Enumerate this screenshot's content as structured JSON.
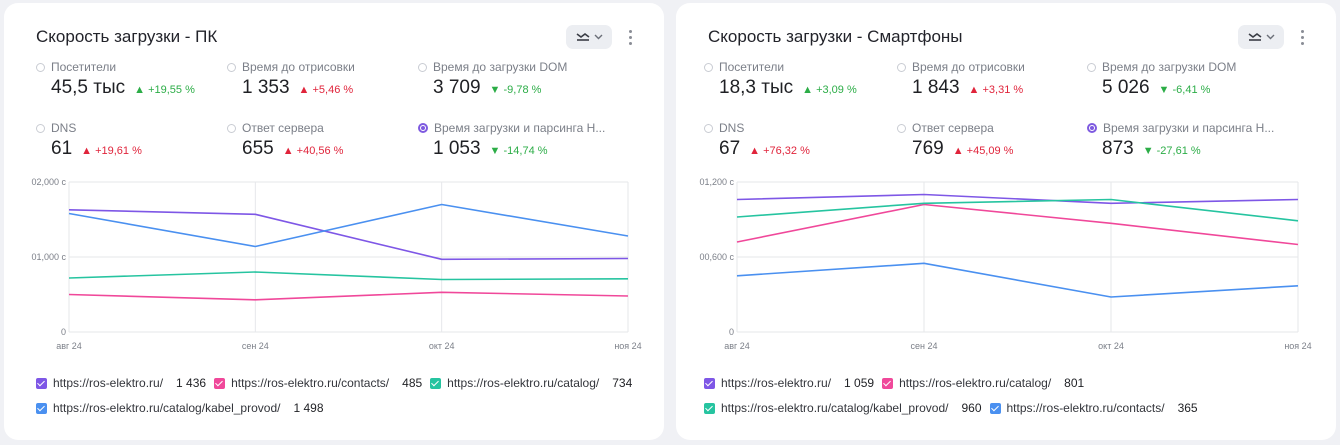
{
  "cards": [
    {
      "title": "Скорость загрузки - ПК",
      "metrics": [
        {
          "label": "Посетители",
          "value": "45,5 тыс",
          "delta": "▲ +19,55 %",
          "tone": "up-good",
          "selected": false
        },
        {
          "label": "Время до отрисовки",
          "value": "1 353",
          "delta": "▲ +5,46 %",
          "tone": "up-bad",
          "selected": false
        },
        {
          "label": "Время до загрузки DOM",
          "value": "3 709",
          "delta": "▼ -9,78 %",
          "tone": "down-good",
          "selected": false
        },
        {
          "label": "DNS",
          "value": "61",
          "delta": "▲ +19,61 %",
          "tone": "up-bad",
          "selected": false
        },
        {
          "label": "Ответ сервера",
          "value": "655",
          "delta": "▲ +40,56 %",
          "tone": "up-bad",
          "selected": false
        },
        {
          "label": "Время загрузки и парсинга Н...",
          "value": "1 053",
          "delta": "▼ -14,74 %",
          "tone": "down-good",
          "selected": true
        }
      ],
      "legend_rows": [
        [
          {
            "name": "https://ros-elektro.ru/",
            "value": "1 436",
            "color": "#7e57e6"
          },
          {
            "name": "https://ros-elektro.ru/contacts/",
            "value": "485",
            "color": "#f0489a"
          },
          {
            "name": "https://ros-elektro.ru/catalog/",
            "value": "734",
            "color": "#26c4a0"
          }
        ],
        [
          {
            "name": "https://ros-elektro.ru/catalog/kabel_provod/",
            "value": "1 498",
            "color": "#4a90f0"
          }
        ]
      ]
    },
    {
      "title": "Скорость загрузки - Смартфоны",
      "metrics": [
        {
          "label": "Посетители",
          "value": "18,3 тыс",
          "delta": "▲ +3,09 %",
          "tone": "up-good",
          "selected": false
        },
        {
          "label": "Время до отрисовки",
          "value": "1 843",
          "delta": "▲ +3,31 %",
          "tone": "up-bad",
          "selected": false
        },
        {
          "label": "Время до загрузки DOM",
          "value": "5 026",
          "delta": "▼ -6,41 %",
          "tone": "down-good",
          "selected": false
        },
        {
          "label": "DNS",
          "value": "67",
          "delta": "▲ +76,32 %",
          "tone": "up-bad",
          "selected": false
        },
        {
          "label": "Ответ сервера",
          "value": "769",
          "delta": "▲ +45,09 %",
          "tone": "up-bad",
          "selected": false
        },
        {
          "label": "Время загрузки и парсинга Н...",
          "value": "873",
          "delta": "▼ -27,61 %",
          "tone": "down-good",
          "selected": true
        }
      ],
      "legend_rows": [
        [
          {
            "name": "https://ros-elektro.ru/",
            "value": "1 059",
            "color": "#7e57e6"
          },
          {
            "name": "https://ros-elektro.ru/catalog/",
            "value": "801",
            "color": "#f0489a"
          }
        ],
        [
          {
            "name": "https://ros-elektro.ru/catalog/kabel_provod/",
            "value": "960",
            "color": "#26c4a0"
          },
          {
            "name": "https://ros-elektro.ru/contacts/",
            "value": "365",
            "color": "#4a90f0"
          }
        ]
      ]
    }
  ],
  "chart_data": [
    {
      "type": "line",
      "title": "Скорость загрузки - ПК",
      "x": [
        "авг 24",
        "сен 24",
        "окт 24",
        "ноя 24"
      ],
      "ylim": [
        0,
        2
      ],
      "yticks": [
        "0",
        "01,000 с",
        "02,000 с"
      ],
      "ytick_values": [
        0,
        1,
        2
      ],
      "grid": true,
      "series": [
        {
          "name": "https://ros-elektro.ru/",
          "color": "#7e57e6",
          "values": [
            1.63,
            1.57,
            0.97,
            0.98
          ]
        },
        {
          "name": "https://ros-elektro.ru/contacts/",
          "color": "#f0489a",
          "values": [
            0.5,
            0.43,
            0.53,
            0.48
          ]
        },
        {
          "name": "https://ros-elektro.ru/catalog/",
          "color": "#26c4a0",
          "values": [
            0.72,
            0.8,
            0.7,
            0.71
          ]
        },
        {
          "name": "https://ros-elektro.ru/catalog/kabel_provod/",
          "color": "#4a90f0",
          "values": [
            1.58,
            1.14,
            1.7,
            1.28
          ]
        }
      ]
    },
    {
      "type": "line",
      "title": "Скорость загрузки - Смартфоны",
      "x": [
        "авг 24",
        "сен 24",
        "окт 24",
        "ноя 24"
      ],
      "ylim": [
        0,
        1.2
      ],
      "yticks": [
        "0",
        "00,600 с",
        "01,200 с"
      ],
      "ytick_values": [
        0,
        0.6,
        1.2
      ],
      "grid": true,
      "series": [
        {
          "name": "https://ros-elektro.ru/",
          "color": "#7e57e6",
          "values": [
            1.06,
            1.1,
            1.03,
            1.06
          ]
        },
        {
          "name": "https://ros-elektro.ru/catalog/",
          "color": "#f0489a",
          "values": [
            0.72,
            1.02,
            0.87,
            0.7
          ]
        },
        {
          "name": "https://ros-elektro.ru/catalog/kabel_provod/",
          "color": "#26c4a0",
          "values": [
            0.92,
            1.03,
            1.06,
            0.89
          ]
        },
        {
          "name": "https://ros-elektro.ru/contacts/",
          "color": "#4a90f0",
          "values": [
            0.45,
            0.55,
            0.28,
            0.37
          ]
        }
      ]
    }
  ]
}
